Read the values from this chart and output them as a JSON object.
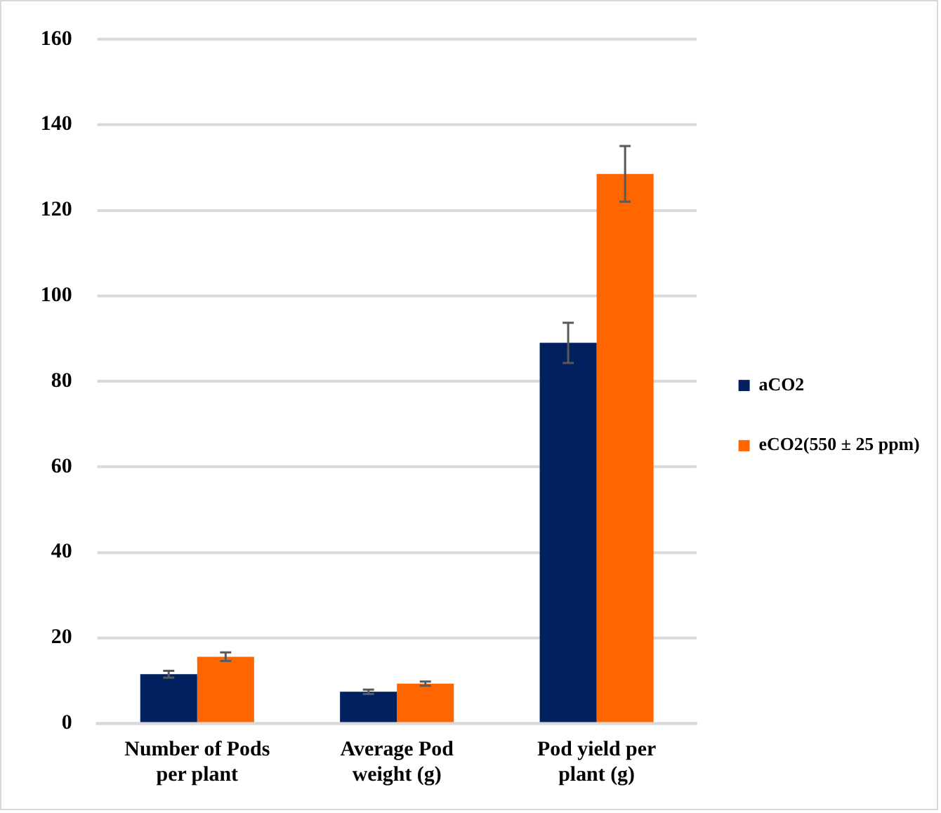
{
  "chart_data": {
    "type": "bar",
    "categories": [
      "Number of Pods per plant",
      "Average Pod weight (g)",
      "Pod yield per plant (g)"
    ],
    "series": [
      {
        "name": "aCO2",
        "color": "#002060",
        "values": [
          11.5,
          7.4,
          89
        ],
        "errors": [
          0.8,
          0.5,
          4.7
        ]
      },
      {
        "name": "eCO2(550 ± 25 ppm)",
        "color": "#ff6600",
        "values": [
          15.6,
          9.3,
          128.5
        ],
        "errors": [
          1,
          0.5,
          6.5
        ]
      }
    ],
    "ylim": [
      0,
      160
    ],
    "yticks": [
      0,
      20,
      40,
      60,
      80,
      100,
      120,
      140,
      160
    ],
    "grid": "y",
    "legend": "right"
  }
}
